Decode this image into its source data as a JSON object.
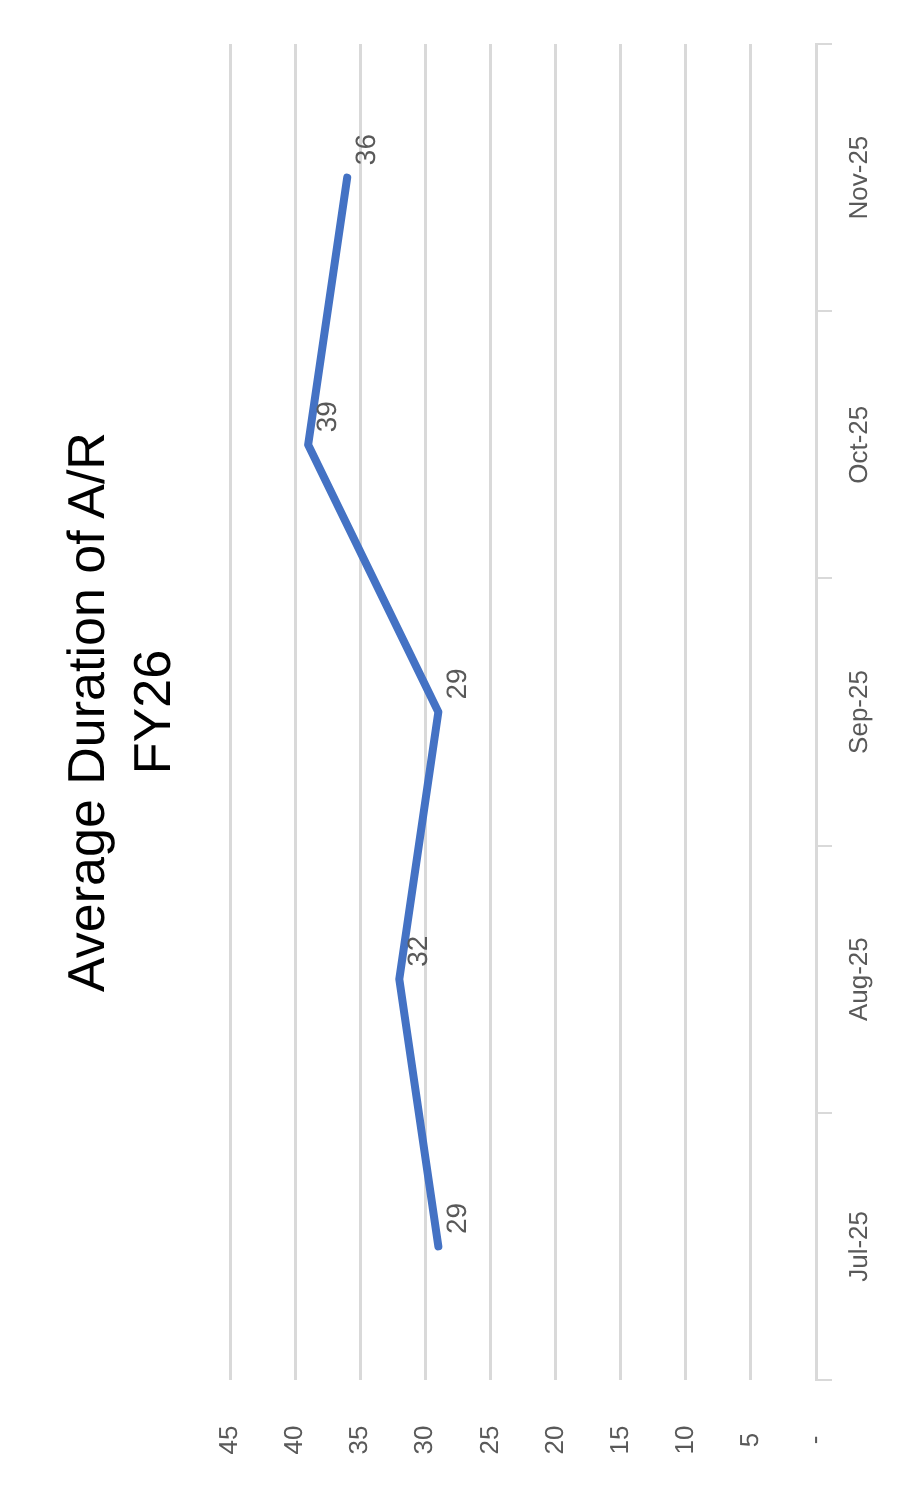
{
  "chart_data": {
    "type": "line",
    "orientation": "horizontal",
    "title": "Average Duration of A/R\nFY26",
    "categories": [
      "Nov-25",
      "Oct-25",
      "Sep-25",
      "Aug-25",
      "Jul-25"
    ],
    "series": [
      {
        "color": "#4472c4",
        "values": [
          36,
          39,
          29,
          32,
          29
        ]
      }
    ],
    "xlim": [
      45,
      0
    ],
    "xticks": [
      45,
      40,
      35,
      30,
      25,
      20,
      15,
      10,
      5,
      {
        "value": 0,
        "label": "-"
      }
    ],
    "grid": "x",
    "legend": false,
    "marker": "none",
    "data_labels": true
  }
}
